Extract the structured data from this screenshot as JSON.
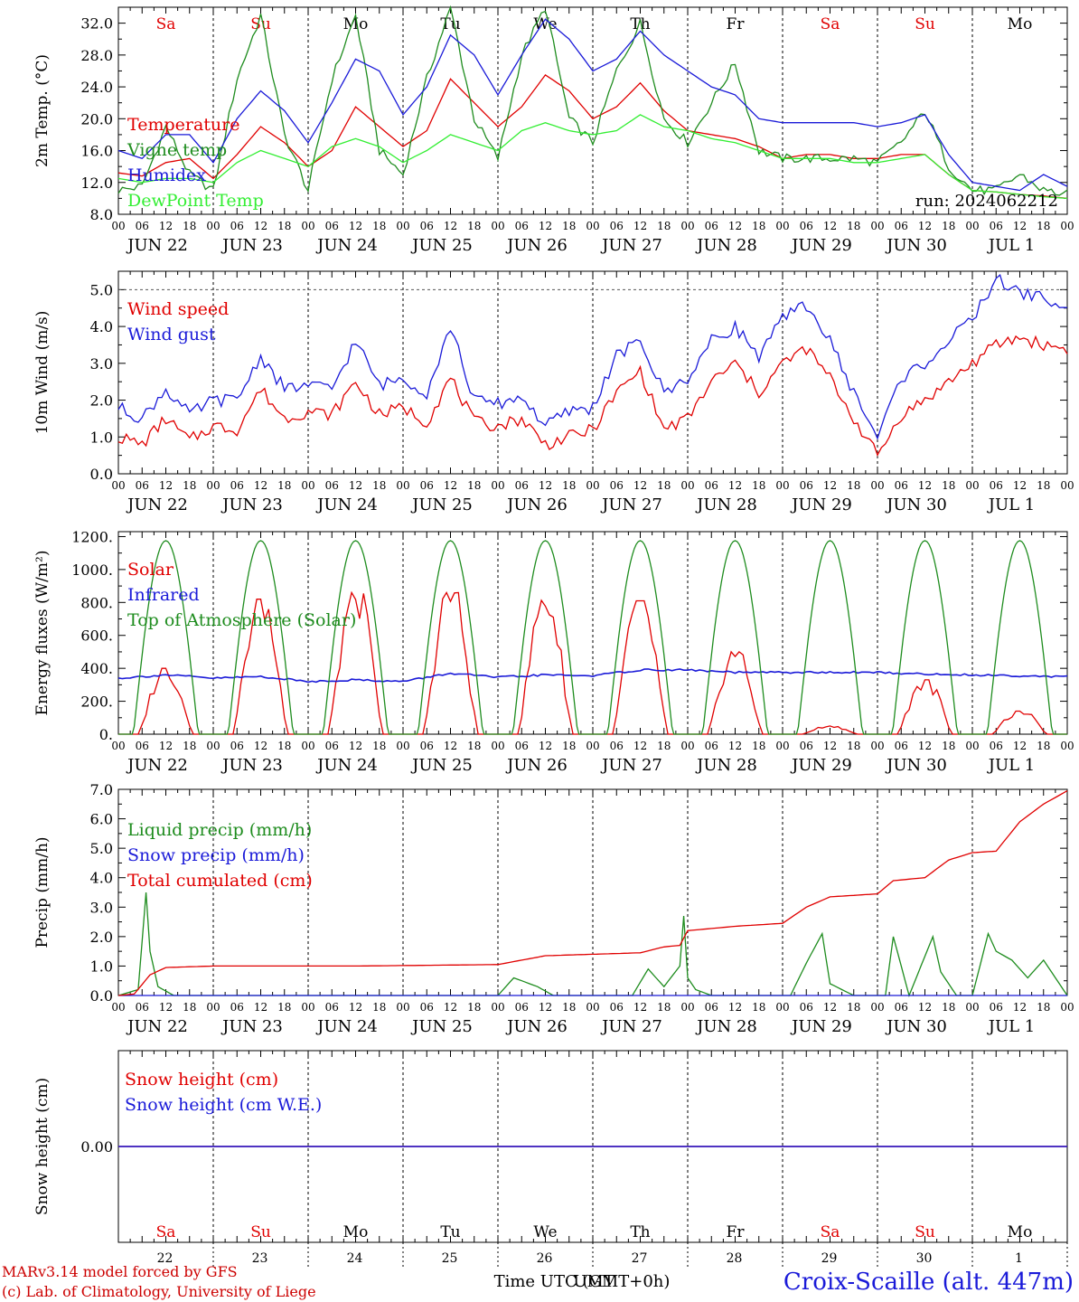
{
  "chart_data": {
    "type": "line",
    "time_axis": {
      "hour_labels": [
        "00",
        "06",
        "12",
        "18"
      ],
      "final_hour_label": "00",
      "dates": [
        "JUN 22",
        "JUN 23",
        "JUN 24",
        "JUN 25",
        "JUN 26",
        "JUN 27",
        "JUN 28",
        "JUN 29",
        "JUN 30",
        "JUL  1"
      ],
      "weekdays": [
        "Sa",
        "Su",
        "Mo",
        "Tu",
        "We",
        "Th",
        "Fr",
        "Sa",
        "Su",
        "Mo"
      ],
      "weekend_days": [
        0,
        1,
        7,
        8
      ],
      "day_numbers": [
        "22",
        "23",
        "24",
        "25",
        "26",
        "27",
        "28",
        "29",
        "30",
        "1"
      ],
      "xlabel": "Time UTC (GMT+0h)",
      "xlabel_overlay": "UMT"
    },
    "panels": [
      {
        "id": "temperature",
        "ylabel": "2m Temp. (°C)",
        "ylim": [
          8,
          34
        ],
        "yticks": [
          8,
          12,
          16,
          20,
          24,
          28,
          32
        ],
        "ytick_labels": [
          "8.0",
          "12.0",
          "16.0",
          "20.0",
          "24.0",
          "28.0",
          "32.0"
        ],
        "annotation": "run: 2024062212",
        "weekday_row": true,
        "series": [
          {
            "name": "Temperature",
            "color": "#e00000",
            "x_hours": [
              0,
              6,
              12,
              18,
              24,
              30,
              36,
              42,
              48,
              54,
              60,
              66,
              72,
              78,
              84,
              90,
              96,
              102,
              108,
              114,
              120,
              126,
              132,
              138,
              144,
              150,
              156,
              162,
              168,
              174,
              180,
              186,
              192,
              198,
              204,
              210,
              216,
              222,
              228,
              234,
              240
            ],
            "values": [
              13.2,
              12.8,
              14.5,
              15.0,
              12.5,
              15.5,
              19.0,
              17.0,
              14.0,
              16.0,
              21.5,
              19.0,
              16.5,
              18.5,
              25.0,
              22.0,
              19.0,
              21.5,
              25.5,
              23.5,
              20.0,
              21.5,
              24.5,
              21.0,
              18.5,
              18.0,
              17.5,
              16.5,
              15.0,
              15.5,
              15.5,
              15.0,
              15.0,
              15.5,
              15.5,
              13.0,
              11.0,
              10.8,
              10.5,
              10.3,
              10.0
            ]
          },
          {
            "name": "Vigne temp",
            "color": "#1e8c1e",
            "x_hours": [
              0,
              6,
              12,
              18,
              24,
              30,
              36,
              42,
              48,
              54,
              60,
              66,
              72,
              78,
              84,
              90,
              96,
              102,
              108,
              114,
              120,
              126,
              132,
              138,
              144,
              150,
              156,
              162,
              168,
              174,
              180,
              186,
              192,
              198,
              204,
              210,
              216,
              222,
              228,
              234,
              240
            ],
            "values": [
              11.0,
              11.5,
              19.0,
              13.0,
              11.0,
              25.0,
              33.0,
              18.0,
              11.0,
              25.0,
              33.0,
              16.0,
              13.0,
              25.0,
              34.0,
              20.0,
              15.0,
              28.0,
              34.0,
              20.0,
              17.0,
              26.0,
              32.0,
              20.0,
              17.0,
              22.0,
              27.0,
              16.0,
              15.0,
              15.0,
              15.0,
              15.0,
              14.5,
              17.0,
              21.0,
              14.0,
              11.0,
              11.0,
              13.0,
              11.0,
              10.5
            ]
          },
          {
            "name": "Humidex",
            "color": "#1a1ad8",
            "x_hours": [
              0,
              6,
              12,
              18,
              24,
              30,
              36,
              42,
              48,
              54,
              60,
              66,
              72,
              78,
              84,
              90,
              96,
              102,
              108,
              114,
              120,
              126,
              132,
              138,
              144,
              150,
              156,
              162,
              168,
              174,
              180,
              186,
              192,
              198,
              204,
              210,
              216,
              222,
              228,
              234,
              240
            ],
            "values": [
              16.0,
              15.0,
              18.0,
              18.0,
              14.5,
              20.0,
              23.5,
              21.0,
              17.0,
              22.0,
              27.5,
              26.0,
              20.5,
              24.0,
              30.5,
              28.0,
              23.0,
              28.0,
              32.5,
              30.0,
              26.0,
              27.5,
              31.0,
              28.0,
              26.0,
              24.0,
              23.0,
              20.0,
              19.5,
              19.5,
              19.5,
              19.5,
              19.0,
              19.5,
              20.5,
              15.5,
              12.0,
              11.5,
              11.0,
              13.0,
              11.5
            ]
          },
          {
            "name": "DewPoint Temp",
            "color": "#33ee33",
            "x_hours": [
              0,
              6,
              12,
              18,
              24,
              30,
              36,
              42,
              48,
              54,
              60,
              66,
              72,
              78,
              84,
              90,
              96,
              102,
              108,
              114,
              120,
              126,
              132,
              138,
              144,
              150,
              156,
              162,
              168,
              174,
              180,
              186,
              192,
              198,
              204,
              210,
              216,
              222,
              228,
              234,
              240
            ],
            "values": [
              12.5,
              12.0,
              12.5,
              12.5,
              12.0,
              14.5,
              16.0,
              15.0,
              14.0,
              16.5,
              17.5,
              16.5,
              14.5,
              16.0,
              18.0,
              17.0,
              16.0,
              18.5,
              19.5,
              18.5,
              18.0,
              18.5,
              20.5,
              19.0,
              18.5,
              17.5,
              17.0,
              16.0,
              15.0,
              15.0,
              15.0,
              14.5,
              14.5,
              15.0,
              15.5,
              13.0,
              11.0,
              10.8,
              10.5,
              10.2,
              10.0
            ]
          }
        ]
      },
      {
        "id": "wind",
        "ylabel": "10m Wind (m/s)",
        "ylim": [
          0,
          5.5
        ],
        "yticks": [
          0,
          1,
          2,
          3,
          4,
          5
        ],
        "ytick_labels": [
          "0.0",
          "1.0",
          "2.0",
          "3.0",
          "4.0",
          "5.0"
        ],
        "reference_line": 5.0,
        "series": [
          {
            "name": "Wind speed",
            "color": "#e00000",
            "x_hours": [
              0,
              6,
              12,
              18,
              24,
              30,
              36,
              42,
              48,
              54,
              60,
              66,
              72,
              78,
              84,
              90,
              96,
              102,
              108,
              114,
              120,
              126,
              132,
              138,
              144,
              150,
              156,
              162,
              168,
              174,
              180,
              186,
              192,
              198,
              204,
              210,
              216,
              222,
              228,
              234,
              240
            ],
            "values": [
              1.0,
              0.8,
              1.5,
              0.9,
              1.3,
              1.2,
              2.3,
              1.5,
              1.7,
              1.6,
              2.5,
              1.6,
              1.8,
              1.4,
              2.6,
              1.4,
              1.3,
              1.5,
              0.8,
              1.0,
              1.2,
              2.2,
              2.8,
              1.2,
              1.5,
              2.5,
              3.0,
              2.2,
              3.0,
              3.4,
              2.6,
              1.5,
              0.5,
              1.6,
              2.0,
              2.5,
              3.0,
              3.5,
              3.7,
              3.5,
              3.4
            ]
          },
          {
            "name": "Wind gust",
            "color": "#1a1ad8",
            "x_hours": [
              0,
              6,
              12,
              18,
              24,
              30,
              36,
              42,
              48,
              54,
              60,
              66,
              72,
              78,
              84,
              90,
              96,
              102,
              108,
              114,
              120,
              126,
              132,
              138,
              144,
              150,
              156,
              162,
              168,
              174,
              180,
              186,
              192,
              198,
              204,
              210,
              216,
              222,
              228,
              234,
              240
            ],
            "values": [
              1.8,
              1.5,
              2.3,
              1.6,
              2.0,
              2.0,
              3.2,
              2.3,
              2.4,
              2.3,
              3.6,
              2.4,
              2.6,
              2.2,
              4.0,
              2.0,
              1.9,
              2.1,
              1.3,
              1.7,
              1.8,
              3.2,
              3.6,
              2.2,
              2.6,
              3.6,
              4.0,
              3.2,
              4.2,
              4.6,
              3.6,
              2.2,
              1.0,
              2.6,
              3.0,
              3.6,
              4.2,
              5.3,
              4.9,
              4.8,
              4.4
            ]
          }
        ]
      },
      {
        "id": "energy",
        "ylabel": "Energy fluxes (W/m²)",
        "ylim": [
          0,
          1230
        ],
        "yticks": [
          0,
          200,
          400,
          600,
          800,
          1000,
          1200
        ],
        "ytick_labels": [
          "0.",
          "200.",
          "400.",
          "600.",
          "800.",
          "1000.",
          "1200."
        ],
        "series": [
          {
            "name": "Solar",
            "color": "#e00000",
            "daily_peaks": [
              400,
              820,
              860,
              860,
              820,
              810,
              500,
              50,
              330,
              140
            ]
          },
          {
            "name": "Infrared",
            "color": "#1a1ad8",
            "x_hours": [
              0,
              12,
              24,
              36,
              48,
              60,
              72,
              84,
              96,
              108,
              120,
              132,
              144,
              156,
              168,
              180,
              192,
              204,
              216,
              228,
              240
            ],
            "values": [
              340,
              360,
              340,
              350,
              320,
              330,
              320,
              370,
              345,
              360,
              355,
              390,
              390,
              375,
              375,
              375,
              375,
              365,
              360,
              355,
              350
            ]
          },
          {
            "name": "Top of Atmosphere (Solar)",
            "color": "#1e8c1e",
            "daily_peak": 1175
          }
        ]
      },
      {
        "id": "precip",
        "ylabel": "Precip (mm/h)",
        "ylim": [
          0,
          7
        ],
        "yticks": [
          0,
          1,
          2,
          3,
          4,
          5,
          6,
          7
        ],
        "ytick_labels": [
          "0.0",
          "1.0",
          "2.0",
          "3.0",
          "4.0",
          "5.0",
          "6.0",
          "7.0"
        ],
        "series": [
          {
            "name": "Liquid precip (mm/h)",
            "color": "#1e8c1e",
            "x_hours": [
              0,
              5,
              7,
              8,
              10,
              14,
              24,
              96,
              100,
              106,
              110,
              130,
              134,
              138,
              142,
              143,
              144,
              146,
              150,
              170,
              174,
              178,
              180,
              186,
              194,
              196,
              200,
              206,
              208,
              212,
              216,
              220,
              222,
              226,
              230,
              234,
              238,
              240
            ],
            "values": [
              0,
              0.2,
              3.5,
              1.5,
              0.3,
              0,
              0,
              0,
              0.6,
              0.3,
              0,
              0,
              0.9,
              0.3,
              1.0,
              2.7,
              0.6,
              0.2,
              0,
              0,
              1.1,
              2.1,
              0.4,
              0,
              0,
              2.0,
              0,
              2.0,
              0.8,
              0,
              0,
              2.1,
              1.5,
              1.2,
              0.6,
              1.2,
              0.4,
              0
            ]
          },
          {
            "name": "Snow precip (mm/h)",
            "color": "#1a1ad8",
            "x_hours": [
              0,
              240
            ],
            "values": [
              0,
              0
            ]
          },
          {
            "name": "Total cumulated (cm)",
            "color": "#e00000",
            "x_hours": [
              0,
              4,
              8,
              12,
              24,
              36,
              60,
              96,
              108,
              120,
              132,
              138,
              142,
              144,
              156,
              168,
              174,
              180,
              192,
              196,
              204,
              210,
              216,
              222,
              228,
              234,
              240
            ],
            "values": [
              0,
              0.05,
              0.7,
              0.95,
              1.0,
              1.0,
              1.0,
              1.05,
              1.35,
              1.4,
              1.45,
              1.65,
              1.7,
              2.2,
              2.35,
              2.45,
              3.0,
              3.35,
              3.45,
              3.9,
              4.0,
              4.6,
              4.85,
              4.9,
              5.9,
              6.5,
              6.95
            ]
          }
        ]
      },
      {
        "id": "snow",
        "ylabel": "Snow height (cm)",
        "yticks": [
          0
        ],
        "ytick_labels": [
          "0.00"
        ],
        "weekday_row": true,
        "series": [
          {
            "name": "Snow height (cm)",
            "color": "#e00000",
            "x_hours": [
              0,
              240
            ],
            "values": [
              0,
              0
            ]
          },
          {
            "name": "Snow height (cm W.E.)",
            "color": "#1a1ad8",
            "x_hours": [
              0,
              240
            ],
            "values": [
              0,
              0
            ]
          }
        ]
      }
    ]
  },
  "footer": {
    "model_line": "MARv3.14 model forced by GFS",
    "credit_line": "(c) Lab. of Climatology, University of Liege",
    "station": "Croix-Scaille (alt. 447m)"
  },
  "colors": {
    "weekend": "#e00000",
    "weekday": "#000000",
    "station": "#1a1ad8"
  }
}
